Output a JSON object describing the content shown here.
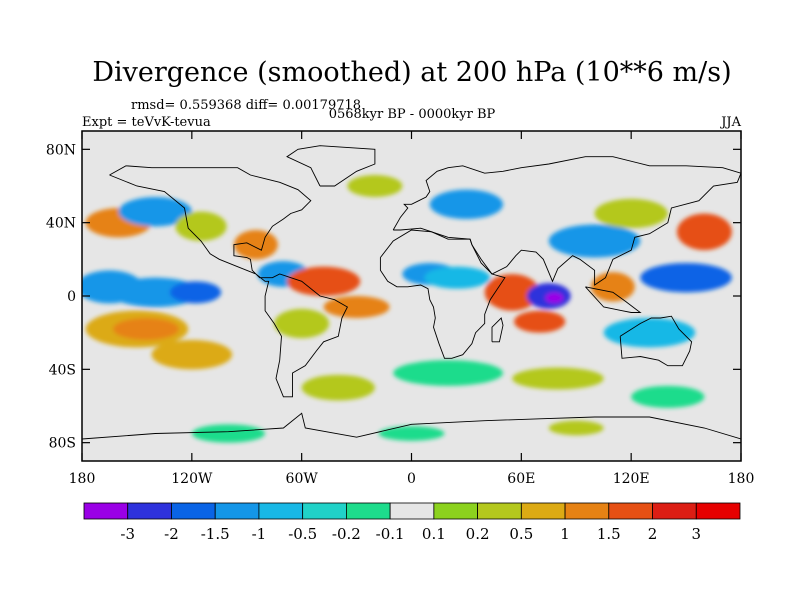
{
  "title": "Divergence (smoothed) at 200 hPa (10**6 m/s)",
  "stats_text": "rmsd= 0.559368  diff= 0.00179718",
  "period_text": "0568kyr BP - 0000kyr BP",
  "experiment_text": "Expt = teVvK-tevua",
  "season_text": "JJA",
  "x_ticks": [
    "180",
    "120W",
    "60W",
    "0",
    "60E",
    "120E",
    "180"
  ],
  "y_ticks": [
    "80N",
    "40N",
    "0",
    "40S",
    "80S"
  ],
  "colorbar": {
    "labels": [
      "-3",
      "-2",
      "-1.5",
      "-1",
      "-0.5",
      "-0.2",
      "-0.1",
      "0.1",
      "0.2",
      "0.5",
      "1",
      "1.5",
      "2",
      "3"
    ],
    "colors": [
      "#9a00e6",
      "#2e32dc",
      "#0a64e6",
      "#1496e8",
      "#18b8e6",
      "#20d2c8",
      "#1edc8c",
      "#e6e6e6",
      "#8cd21e",
      "#b4c81e",
      "#dcaa14",
      "#e68214",
      "#e65014",
      "#dc1e14",
      "#e60000"
    ]
  },
  "map": {
    "lon_range": [
      -180,
      180
    ],
    "lat_range": [
      -90,
      90
    ],
    "background_color": "#e6e6e6",
    "field_blobs": [
      {
        "lon": -165,
        "lat": 5,
        "rx": 18,
        "ry": 9,
        "color": "#1496e8"
      },
      {
        "lon": -140,
        "lat": 2,
        "rx": 25,
        "ry": 8,
        "color": "#1496e8"
      },
      {
        "lon": -118,
        "lat": 2,
        "rx": 14,
        "ry": 6,
        "color": "#0a64e6"
      },
      {
        "lon": -150,
        "lat": -18,
        "rx": 28,
        "ry": 10,
        "color": "#dcaa14"
      },
      {
        "lon": -145,
        "lat": -18,
        "rx": 18,
        "ry": 6,
        "color": "#e68214"
      },
      {
        "lon": -120,
        "lat": -32,
        "rx": 22,
        "ry": 8,
        "color": "#dcaa14"
      },
      {
        "lon": -160,
        "lat": 40,
        "rx": 18,
        "ry": 8,
        "color": "#e68214"
      },
      {
        "lon": -140,
        "lat": 46,
        "rx": 20,
        "ry": 8,
        "color": "#1496e8"
      },
      {
        "lon": -115,
        "lat": 38,
        "rx": 14,
        "ry": 8,
        "color": "#b4c81e"
      },
      {
        "lon": -85,
        "lat": 28,
        "rx": 12,
        "ry": 8,
        "color": "#e68214"
      },
      {
        "lon": -70,
        "lat": 12,
        "rx": 14,
        "ry": 7,
        "color": "#1496e8"
      },
      {
        "lon": -48,
        "lat": 8,
        "rx": 20,
        "ry": 8,
        "color": "#e65014"
      },
      {
        "lon": -30,
        "lat": -6,
        "rx": 18,
        "ry": 6,
        "color": "#e68214"
      },
      {
        "lon": -60,
        "lat": -15,
        "rx": 15,
        "ry": 8,
        "color": "#b4c81e"
      },
      {
        "lon": -40,
        "lat": -50,
        "rx": 20,
        "ry": 7,
        "color": "#b4c81e"
      },
      {
        "lon": 10,
        "lat": 12,
        "rx": 15,
        "ry": 6,
        "color": "#1496e8"
      },
      {
        "lon": 25,
        "lat": 10,
        "rx": 18,
        "ry": 6,
        "color": "#18b8e6"
      },
      {
        "lon": 30,
        "lat": 50,
        "rx": 20,
        "ry": 8,
        "color": "#1496e8"
      },
      {
        "lon": 55,
        "lat": 2,
        "rx": 15,
        "ry": 10,
        "color": "#e65014"
      },
      {
        "lon": 75,
        "lat": 0,
        "rx": 12,
        "ry": 7,
        "color": "#2e32dc"
      },
      {
        "lon": 78,
        "lat": -1,
        "rx": 5,
        "ry": 3,
        "color": "#9a00e6"
      },
      {
        "lon": 70,
        "lat": -14,
        "rx": 14,
        "ry": 6,
        "color": "#e65014"
      },
      {
        "lon": 100,
        "lat": 30,
        "rx": 25,
        "ry": 9,
        "color": "#1496e8"
      },
      {
        "lon": 120,
        "lat": 45,
        "rx": 20,
        "ry": 8,
        "color": "#b4c81e"
      },
      {
        "lon": 110,
        "lat": 5,
        "rx": 12,
        "ry": 8,
        "color": "#e68214"
      },
      {
        "lon": 150,
        "lat": 10,
        "rx": 25,
        "ry": 8,
        "color": "#0a64e6"
      },
      {
        "lon": 160,
        "lat": 35,
        "rx": 15,
        "ry": 10,
        "color": "#e65014"
      },
      {
        "lon": 130,
        "lat": -20,
        "rx": 25,
        "ry": 8,
        "color": "#18b8e6"
      },
      {
        "lon": 20,
        "lat": -42,
        "rx": 30,
        "ry": 7,
        "color": "#1edc8c"
      },
      {
        "lon": 80,
        "lat": -45,
        "rx": 25,
        "ry": 6,
        "color": "#b4c81e"
      },
      {
        "lon": 140,
        "lat": -55,
        "rx": 20,
        "ry": 6,
        "color": "#1edc8c"
      },
      {
        "lon": -20,
        "lat": 60,
        "rx": 15,
        "ry": 6,
        "color": "#b4c81e"
      },
      {
        "lon": -100,
        "lat": -75,
        "rx": 20,
        "ry": 5,
        "color": "#1edc8c"
      },
      {
        "lon": 0,
        "lat": -75,
        "rx": 18,
        "ry": 4,
        "color": "#1edc8c"
      },
      {
        "lon": 90,
        "lat": -72,
        "rx": 15,
        "ry": 4,
        "color": "#b4c81e"
      }
    ],
    "coastlines": [
      [
        [
          -165,
          66
        ],
        [
          -150,
          60
        ],
        [
          -135,
          57
        ],
        [
          -124,
          48
        ],
        [
          -122,
          37
        ],
        [
          -115,
          30
        ],
        [
          -110,
          23
        ],
        [
          -105,
          20
        ],
        [
          -95,
          16
        ],
        [
          -85,
          12
        ],
        [
          -80,
          8
        ],
        [
          -78,
          8
        ],
        [
          -80,
          0
        ],
        [
          -80,
          -8
        ],
        [
          -75,
          -15
        ],
        [
          -71,
          -22
        ],
        [
          -72,
          -35
        ],
        [
          -74,
          -45
        ],
        [
          -70,
          -55
        ],
        [
          -65,
          -55
        ],
        [
          -65,
          -42
        ],
        [
          -58,
          -38
        ],
        [
          -52,
          -30
        ],
        [
          -48,
          -25
        ],
        [
          -40,
          -22
        ],
        [
          -38,
          -12
        ],
        [
          -35,
          -6
        ],
        [
          -42,
          -2
        ],
        [
          -50,
          0
        ],
        [
          -60,
          8
        ],
        [
          -72,
          12
        ],
        [
          -76,
          10
        ],
        [
          -83,
          10
        ],
        [
          -87,
          14
        ],
        [
          -88,
          20
        ],
        [
          -90,
          21
        ],
        [
          -97,
          22
        ],
        [
          -97,
          28
        ],
        [
          -90,
          29
        ],
        [
          -82,
          25
        ],
        [
          -80,
          32
        ],
        [
          -76,
          38
        ],
        [
          -70,
          42
        ],
        [
          -66,
          45
        ],
        [
          -60,
          47
        ],
        [
          -55,
          52
        ],
        [
          -62,
          58
        ],
        [
          -72,
          62
        ],
        [
          -80,
          64
        ],
        [
          -88,
          66
        ],
        [
          -95,
          70
        ],
        [
          -110,
          70
        ],
        [
          -128,
          70
        ],
        [
          -142,
          70
        ],
        [
          -156,
          71
        ],
        [
          -165,
          66
        ]
      ],
      [
        [
          -50,
          60
        ],
        [
          -42,
          60
        ],
        [
          -30,
          68
        ],
        [
          -20,
          72
        ],
        [
          -20,
          80
        ],
        [
          -50,
          82
        ],
        [
          -62,
          80
        ],
        [
          -68,
          76
        ],
        [
          -55,
          70
        ],
        [
          -50,
          60
        ]
      ],
      [
        [
          -10,
          36
        ],
        [
          -6,
          43
        ],
        [
          -2,
          48
        ],
        [
          -4,
          50
        ],
        [
          0,
          50
        ],
        [
          4,
          52
        ],
        [
          8,
          54
        ],
        [
          10,
          57
        ],
        [
          8,
          63
        ],
        [
          14,
          68
        ],
        [
          20,
          70
        ],
        [
          28,
          71
        ],
        [
          40,
          67
        ],
        [
          50,
          68
        ],
        [
          60,
          70
        ],
        [
          75,
          72
        ],
        [
          95,
          76
        ],
        [
          110,
          76
        ],
        [
          130,
          71
        ],
        [
          150,
          71
        ],
        [
          170,
          70
        ],
        [
          180,
          67
        ],
        [
          178,
          62
        ],
        [
          165,
          60
        ],
        [
          157,
          52
        ],
        [
          142,
          48
        ],
        [
          140,
          40
        ],
        [
          130,
          34
        ],
        [
          122,
          32
        ],
        [
          120,
          25
        ],
        [
          110,
          20
        ],
        [
          106,
          10
        ],
        [
          100,
          6
        ],
        [
          100,
          14
        ],
        [
          92,
          20
        ],
        [
          88,
          22
        ],
        [
          80,
          15
        ],
        [
          77,
          8
        ],
        [
          72,
          20
        ],
        [
          68,
          24
        ],
        [
          60,
          25
        ],
        [
          57,
          22
        ],
        [
          52,
          16
        ],
        [
          44,
          12
        ],
        [
          38,
          20
        ],
        [
          33,
          28
        ],
        [
          32,
          31
        ],
        [
          28,
          31
        ],
        [
          20,
          31
        ],
        [
          11,
          35
        ],
        [
          5,
          37
        ],
        [
          -6,
          36
        ],
        [
          -10,
          36
        ]
      ],
      [
        [
          -17,
          21
        ],
        [
          -17,
          14
        ],
        [
          -13,
          8
        ],
        [
          -8,
          5
        ],
        [
          -2,
          5
        ],
        [
          5,
          6
        ],
        [
          9,
          4
        ],
        [
          10,
          -2
        ],
        [
          12,
          -6
        ],
        [
          13,
          -12
        ],
        [
          12,
          -17
        ],
        [
          15,
          -26
        ],
        [
          18,
          -34
        ],
        [
          22,
          -34
        ],
        [
          28,
          -32
        ],
        [
          33,
          -26
        ],
        [
          35,
          -20
        ],
        [
          40,
          -15
        ],
        [
          40,
          -10
        ],
        [
          43,
          -2
        ],
        [
          51,
          10
        ],
        [
          44,
          12
        ],
        [
          38,
          18
        ],
        [
          33,
          28
        ],
        [
          32,
          31
        ],
        [
          20,
          32
        ],
        [
          11,
          35
        ],
        [
          0,
          36
        ],
        [
          -10,
          30
        ],
        [
          -17,
          21
        ]
      ],
      [
        [
          44,
          -25
        ],
        [
          48,
          -25
        ],
        [
          50,
          -16
        ],
        [
          49,
          -12
        ],
        [
          44,
          -17
        ],
        [
          44,
          -25
        ]
      ],
      [
        [
          114,
          -22
        ],
        [
          115,
          -34
        ],
        [
          125,
          -33
        ],
        [
          135,
          -35
        ],
        [
          140,
          -38
        ],
        [
          148,
          -38
        ],
        [
          152,
          -30
        ],
        [
          153,
          -25
        ],
        [
          146,
          -18
        ],
        [
          142,
          -11
        ],
        [
          136,
          -12
        ],
        [
          131,
          -12
        ],
        [
          125,
          -15
        ],
        [
          114,
          -22
        ]
      ],
      [
        [
          -180,
          -78
        ],
        [
          -140,
          -75
        ],
        [
          -100,
          -74
        ],
        [
          -70,
          -72
        ],
        [
          -60,
          -64
        ],
        [
          -58,
          -72
        ],
        [
          -30,
          -77
        ],
        [
          0,
          -70
        ],
        [
          40,
          -68
        ],
        [
          70,
          -67
        ],
        [
          100,
          -66
        ],
        [
          130,
          -66
        ],
        [
          160,
          -72
        ],
        [
          180,
          -78
        ]
      ],
      [
        [
          95,
          5
        ],
        [
          105,
          -6
        ],
        [
          110,
          -7
        ],
        [
          115,
          -8
        ],
        [
          120,
          -9
        ],
        [
          125,
          -9
        ],
        [
          117,
          -3
        ],
        [
          110,
          2
        ],
        [
          100,
          4
        ],
        [
          95,
          5
        ]
      ]
    ]
  }
}
